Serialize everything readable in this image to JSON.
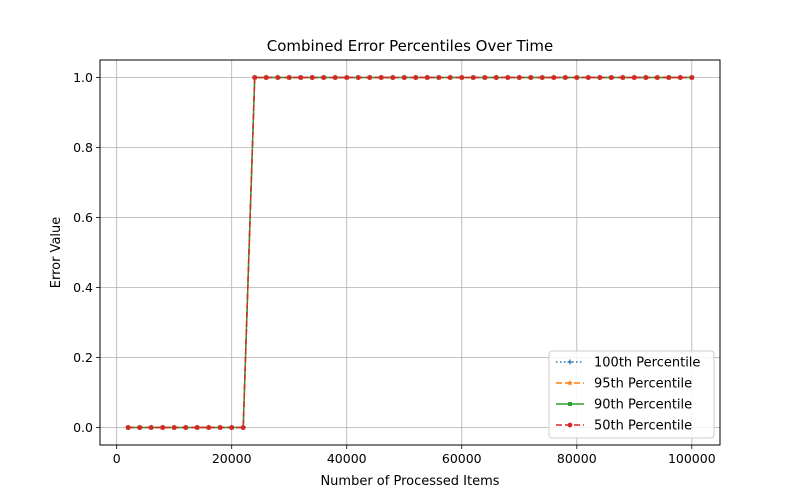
{
  "chart_data": {
    "type": "line",
    "title": "Combined Error Percentiles Over Time",
    "xlabel": "Number of Processed Items",
    "ylabel": "Error Value",
    "xlim": [
      -2900,
      104900
    ],
    "ylim": [
      -0.05,
      1.05
    ],
    "xticks": [
      0,
      20000,
      40000,
      60000,
      80000,
      100000
    ],
    "yticks": [
      0.0,
      0.2,
      0.4,
      0.6,
      0.8,
      1.0
    ],
    "xtick_labels": [
      "0",
      "20000",
      "40000",
      "60000",
      "80000",
      "100000"
    ],
    "ytick_labels": [
      "0.0",
      "0.2",
      "0.4",
      "0.6",
      "0.8",
      "1.0"
    ],
    "grid": true,
    "legend_position": "lower-right",
    "x": [
      2000,
      4000,
      6000,
      8000,
      10000,
      12000,
      14000,
      16000,
      18000,
      20000,
      22000,
      24000,
      26000,
      28000,
      30000,
      32000,
      34000,
      36000,
      38000,
      40000,
      42000,
      44000,
      46000,
      48000,
      50000,
      52000,
      54000,
      56000,
      58000,
      60000,
      62000,
      64000,
      66000,
      68000,
      70000,
      72000,
      74000,
      76000,
      78000,
      80000,
      82000,
      84000,
      86000,
      88000,
      90000,
      92000,
      94000,
      96000,
      98000,
      100000
    ],
    "series": [
      {
        "name": "100th Percentile",
        "color": "#1f77b4",
        "linestyle": "dotted",
        "marker": "plus",
        "values": [
          0,
          0,
          0,
          0,
          0,
          0,
          0,
          0,
          0,
          0,
          0,
          1,
          1,
          1,
          1,
          1,
          1,
          1,
          1,
          1,
          1,
          1,
          1,
          1,
          1,
          1,
          1,
          1,
          1,
          1,
          1,
          1,
          1,
          1,
          1,
          1,
          1,
          1,
          1,
          1,
          1,
          1,
          1,
          1,
          1,
          1,
          1,
          1,
          1,
          1
        ]
      },
      {
        "name": "95th Percentile",
        "color": "#ff7f0e",
        "linestyle": "dashed",
        "marker": "star",
        "values": [
          0,
          0,
          0,
          0,
          0,
          0,
          0,
          0,
          0,
          0,
          0,
          1,
          1,
          1,
          1,
          1,
          1,
          1,
          1,
          1,
          1,
          1,
          1,
          1,
          1,
          1,
          1,
          1,
          1,
          1,
          1,
          1,
          1,
          1,
          1,
          1,
          1,
          1,
          1,
          1,
          1,
          1,
          1,
          1,
          1,
          1,
          1,
          1,
          1,
          1
        ]
      },
      {
        "name": "90th Percentile",
        "color": "#2ca02c",
        "linestyle": "solid",
        "marker": "square",
        "values": [
          0,
          0,
          0,
          0,
          0,
          0,
          0,
          0,
          0,
          0,
          0,
          1,
          1,
          1,
          1,
          1,
          1,
          1,
          1,
          1,
          1,
          1,
          1,
          1,
          1,
          1,
          1,
          1,
          1,
          1,
          1,
          1,
          1,
          1,
          1,
          1,
          1,
          1,
          1,
          1,
          1,
          1,
          1,
          1,
          1,
          1,
          1,
          1,
          1,
          1
        ]
      },
      {
        "name": "50th Percentile",
        "color": "#d62728",
        "linestyle": "dashed",
        "marker": "hexagon",
        "values": [
          0,
          0,
          0,
          0,
          0,
          0,
          0,
          0,
          0,
          0,
          0,
          1,
          1,
          1,
          1,
          1,
          1,
          1,
          1,
          1,
          1,
          1,
          1,
          1,
          1,
          1,
          1,
          1,
          1,
          1,
          1,
          1,
          1,
          1,
          1,
          1,
          1,
          1,
          1,
          1,
          1,
          1,
          1,
          1,
          1,
          1,
          1,
          1,
          1,
          1
        ]
      }
    ]
  }
}
